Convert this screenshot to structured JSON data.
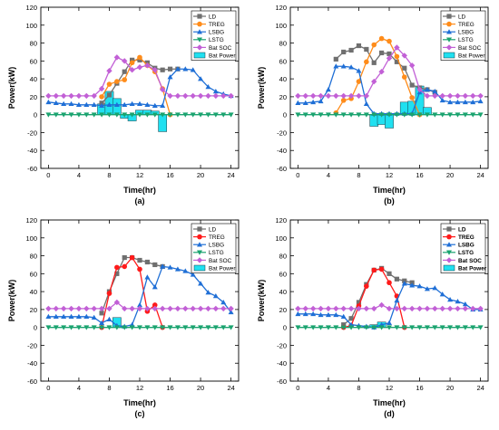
{
  "chart_data": [
    {
      "type": "line",
      "caption": "(a)",
      "xlabel": "Time(hr)",
      "ylabel": "Power(kW)",
      "xlim": [
        -1,
        25
      ],
      "ylim": [
        -60,
        120
      ],
      "xticks": [
        0,
        4,
        8,
        12,
        16,
        20,
        24
      ],
      "yticks": [
        -60,
        -40,
        -20,
        0,
        20,
        40,
        60,
        80,
        100,
        120
      ],
      "legend_position": "top-right",
      "legend_bold": false,
      "series": [
        {
          "name": "LD",
          "kind": "line",
          "color": "#6f6f6f",
          "marker": "square",
          "x": [
            7,
            8,
            9,
            10,
            11,
            12,
            13,
            14,
            15,
            16,
            17
          ],
          "y": [
            13,
            22,
            35,
            48,
            61,
            61,
            58,
            52,
            50,
            51,
            51
          ]
        },
        {
          "name": "TREG",
          "kind": "line",
          "color": "#ff8c1a",
          "marker": "circle",
          "x": [
            7,
            8,
            9,
            10,
            11,
            12,
            13,
            14,
            15,
            16
          ],
          "y": [
            20,
            34,
            37,
            39,
            58,
            64,
            55,
            48,
            29,
            0
          ]
        },
        {
          "name": "LSBG",
          "kind": "line",
          "color": "#1f6fd6",
          "marker": "triangle-up",
          "x": [
            0,
            1,
            2,
            3,
            4,
            5,
            6,
            7,
            8,
            9,
            10,
            11,
            12,
            13,
            14,
            15,
            16,
            17,
            18,
            19,
            20,
            21,
            22,
            23,
            24
          ],
          "y": [
            14,
            13,
            12,
            12,
            11,
            11,
            11,
            10,
            11,
            11,
            11,
            12,
            12,
            11,
            10,
            10,
            42,
            51,
            51,
            50,
            40,
            31,
            26,
            23,
            21
          ]
        },
        {
          "name": "LSTG",
          "kind": "line",
          "color": "#1aa36f",
          "marker": "triangle-down",
          "x": [
            0,
            1,
            2,
            3,
            4,
            5,
            6,
            7,
            8,
            9,
            10,
            11,
            12,
            13,
            14,
            15,
            16,
            17,
            18,
            19,
            20,
            21,
            22,
            23,
            24
          ],
          "y": [
            0,
            0,
            0,
            0,
            0,
            0,
            0,
            0,
            0,
            0,
            0,
            0,
            0,
            0,
            0,
            0,
            0,
            0,
            0,
            0,
            0,
            0,
            0,
            0,
            0
          ]
        },
        {
          "name": "Bat SOC",
          "kind": "line",
          "color": "#c260d6",
          "marker": "diamond",
          "x": [
            0,
            1,
            2,
            3,
            4,
            5,
            6,
            7,
            8,
            9,
            10,
            11,
            12,
            13,
            14,
            15,
            16,
            17,
            18,
            19,
            20,
            21,
            22,
            23,
            24
          ],
          "y": [
            21,
            21,
            21,
            21,
            21,
            21,
            21,
            29,
            49,
            64,
            60,
            50,
            53,
            55,
            50,
            28,
            21,
            21,
            21,
            21,
            21,
            21,
            21,
            21,
            21
          ]
        },
        {
          "name": "Bat Power",
          "kind": "bar",
          "color": "#20e0f0",
          "x": [
            7,
            8,
            9,
            10,
            11,
            12,
            13,
            14,
            15
          ],
          "y": [
            12,
            26,
            18,
            -4,
            -7,
            5,
            5,
            4,
            -19
          ]
        }
      ]
    },
    {
      "type": "line",
      "caption": "(b)",
      "xlabel": "Time(hr)",
      "ylabel": "Power(kW)",
      "xlim": [
        -1,
        25
      ],
      "ylim": [
        -60,
        120
      ],
      "xticks": [
        0,
        4,
        8,
        12,
        16,
        20,
        24
      ],
      "yticks": [
        -60,
        -40,
        -20,
        0,
        20,
        40,
        60,
        80,
        100,
        120
      ],
      "legend_position": "top-right",
      "legend_bold": false,
      "series": [
        {
          "name": "LD",
          "kind": "line",
          "color": "#6f6f6f",
          "marker": "square",
          "x": [
            5,
            6,
            7,
            8,
            9,
            10,
            11,
            12,
            13,
            14,
            15,
            16,
            17,
            18
          ],
          "y": [
            62,
            70,
            72,
            77,
            73,
            58,
            69,
            68,
            59,
            52,
            33,
            30,
            28,
            25
          ]
        },
        {
          "name": "TREG",
          "kind": "line",
          "color": "#ff8c1a",
          "marker": "circle",
          "x": [
            5,
            6,
            7,
            8,
            9,
            10,
            11,
            12,
            13,
            14,
            15,
            16
          ],
          "y": [
            2,
            16,
            18,
            37,
            59,
            78,
            85,
            82,
            65,
            42,
            19,
            0
          ]
        },
        {
          "name": "LSBG",
          "kind": "line",
          "color": "#1f6fd6",
          "marker": "triangle-up",
          "x": [
            0,
            1,
            2,
            3,
            4,
            5,
            6,
            7,
            8,
            9,
            10,
            11,
            12,
            13,
            14,
            15,
            16,
            17,
            18,
            19,
            20,
            21,
            22,
            23,
            24
          ],
          "y": [
            13,
            13,
            14,
            15,
            28,
            54,
            54,
            53,
            49,
            12,
            1,
            1,
            1,
            1,
            1,
            1,
            25,
            28,
            26,
            16,
            14,
            14,
            14,
            14,
            15
          ]
        },
        {
          "name": "LSTG",
          "kind": "line",
          "color": "#1aa36f",
          "marker": "triangle-down",
          "x": [
            0,
            1,
            2,
            3,
            4,
            5,
            6,
            7,
            8,
            9,
            10,
            11,
            12,
            13,
            14,
            15,
            16,
            17,
            18,
            19,
            20,
            21,
            22,
            23,
            24
          ],
          "y": [
            0,
            0,
            0,
            0,
            0,
            0,
            0,
            0,
            0,
            0,
            0,
            0,
            0,
            0,
            0,
            0,
            0,
            0,
            0,
            0,
            0,
            0,
            0,
            0,
            0
          ]
        },
        {
          "name": "Bat SOC",
          "kind": "line",
          "color": "#c260d6",
          "marker": "diamond",
          "x": [
            0,
            1,
            2,
            3,
            4,
            5,
            6,
            7,
            8,
            9,
            10,
            11,
            12,
            13,
            14,
            15,
            16,
            17,
            18,
            19,
            20,
            21,
            22,
            23,
            24
          ],
          "y": [
            21,
            21,
            21,
            21,
            21,
            21,
            21,
            21,
            21,
            21,
            37,
            48,
            63,
            75,
            66,
            55,
            28,
            21,
            21,
            21,
            21,
            21,
            21,
            21,
            21
          ]
        },
        {
          "name": "Bat Power",
          "kind": "bar",
          "color": "#20e0f0",
          "x": [
            10,
            11,
            12,
            14,
            15,
            16,
            17
          ],
          "y": [
            -13,
            -11,
            -15,
            14,
            15,
            32,
            8
          ]
        }
      ]
    },
    {
      "type": "line",
      "caption": "(c)",
      "xlabel": "Time(hr)",
      "ylabel": "Power(kW)",
      "xlim": [
        -1,
        25
      ],
      "ylim": [
        -60,
        120
      ],
      "xticks": [
        0,
        4,
        8,
        12,
        16,
        20,
        24
      ],
      "yticks": [
        -60,
        -40,
        -20,
        0,
        20,
        40,
        60,
        80,
        100,
        120
      ],
      "legend_position": "top-right",
      "legend_bold": false,
      "series": [
        {
          "name": "LD",
          "kind": "line",
          "color": "#6f6f6f",
          "marker": "square",
          "x": [
            7,
            8,
            9,
            10,
            11,
            12,
            13,
            14,
            15
          ],
          "y": [
            16,
            40,
            60,
            78,
            78,
            75,
            73,
            70,
            68
          ]
        },
        {
          "name": "TREG",
          "kind": "line",
          "color": "#ff1a1a",
          "marker": "circle",
          "x": [
            7,
            8,
            9,
            10,
            11,
            12,
            13,
            14,
            15
          ],
          "y": [
            0,
            38,
            67,
            68,
            78,
            65,
            18,
            25,
            0
          ]
        },
        {
          "name": "LSBG",
          "kind": "line",
          "color": "#1f6fd6",
          "marker": "triangle-up",
          "x": [
            0,
            1,
            2,
            3,
            4,
            5,
            6,
            7,
            8,
            9,
            10,
            11,
            12,
            13,
            14,
            15,
            16,
            17,
            18,
            19,
            20,
            21,
            22,
            23,
            24
          ],
          "y": [
            12,
            12,
            12,
            12,
            12,
            12,
            11,
            5,
            9,
            2,
            1,
            3,
            25,
            56,
            45,
            68,
            67,
            65,
            63,
            59,
            49,
            39,
            35,
            28,
            17
          ]
        },
        {
          "name": "LSTG",
          "kind": "line",
          "color": "#1aa36f",
          "marker": "triangle-down",
          "x": [
            0,
            1,
            2,
            3,
            4,
            5,
            6,
            7,
            8,
            9,
            10,
            11,
            12,
            13,
            14,
            15,
            16,
            17,
            18,
            19,
            20,
            21,
            22,
            23,
            24
          ],
          "y": [
            0,
            0,
            0,
            0,
            0,
            0,
            0,
            0,
            0,
            0,
            0,
            0,
            0,
            0,
            0,
            0,
            0,
            0,
            0,
            0,
            0,
            0,
            0,
            0,
            0
          ]
        },
        {
          "name": "Bat SOC",
          "kind": "line",
          "color": "#c260d6",
          "marker": "diamond",
          "x": [
            0,
            1,
            2,
            3,
            4,
            5,
            6,
            7,
            8,
            9,
            10,
            11,
            12,
            13,
            14,
            15,
            16,
            17,
            18,
            19,
            20,
            21,
            22,
            23,
            24
          ],
          "y": [
            21,
            21,
            21,
            21,
            21,
            21,
            21,
            21,
            21,
            28,
            21,
            21,
            21,
            21,
            21,
            21,
            21,
            21,
            21,
            21,
            21,
            21,
            21,
            21,
            21
          ]
        },
        {
          "name": "Bat Power",
          "kind": "bar",
          "color": "#20e0f0",
          "x": [
            9
          ],
          "y": [
            11
          ]
        }
      ]
    },
    {
      "type": "line",
      "caption": "(d)",
      "xlabel": "Time(hr)",
      "ylabel": "Power(kW)",
      "xlim": [
        -1,
        25
      ],
      "ylim": [
        -60,
        120
      ],
      "xticks": [
        0,
        4,
        8,
        12,
        16,
        20,
        24
      ],
      "yticks": [
        -60,
        -40,
        -20,
        0,
        20,
        40,
        60,
        80,
        100,
        120
      ],
      "legend_position": "top-right",
      "legend_bold": true,
      "series": [
        {
          "name": "LD",
          "kind": "line",
          "color": "#6f6f6f",
          "marker": "square",
          "x": [
            6,
            7,
            8,
            9,
            10,
            11,
            12,
            13,
            14,
            15
          ],
          "y": [
            3,
            10,
            28,
            48,
            64,
            66,
            60,
            54,
            52,
            50
          ]
        },
        {
          "name": "TREG",
          "kind": "line",
          "color": "#ff1a1a",
          "marker": "circle",
          "x": [
            6,
            7,
            8,
            9,
            10,
            11,
            12,
            13,
            14
          ],
          "y": [
            0,
            2,
            24,
            46,
            64,
            65,
            50,
            35,
            0
          ]
        },
        {
          "name": "LSBG",
          "kind": "line",
          "color": "#1f6fd6",
          "marker": "triangle-up",
          "x": [
            0,
            1,
            2,
            3,
            4,
            5,
            6,
            7,
            8,
            9,
            10,
            11,
            12,
            13,
            14,
            15,
            16,
            17,
            18,
            19,
            20,
            21,
            22,
            23,
            24
          ],
          "y": [
            15,
            15,
            15,
            14,
            14,
            14,
            12,
            3,
            2,
            1,
            0,
            3,
            5,
            30,
            49,
            47,
            46,
            43,
            44,
            37,
            31,
            29,
            26,
            20,
            20
          ]
        },
        {
          "name": "LSTG",
          "kind": "line",
          "color": "#1aa36f",
          "marker": "triangle-down",
          "x": [
            0,
            1,
            2,
            3,
            4,
            5,
            6,
            7,
            8,
            9,
            10,
            11,
            12,
            13,
            14,
            15,
            16,
            17,
            18,
            19,
            20,
            21,
            22,
            23,
            24
          ],
          "y": [
            0,
            0,
            0,
            0,
            0,
            0,
            0,
            0,
            0,
            0,
            0,
            0,
            0,
            0,
            0,
            0,
            0,
            0,
            0,
            0,
            0,
            0,
            0,
            0,
            0
          ]
        },
        {
          "name": "Bat SOC",
          "kind": "line",
          "color": "#c260d6",
          "marker": "diamond",
          "x": [
            0,
            1,
            2,
            3,
            4,
            5,
            6,
            7,
            8,
            9,
            10,
            11,
            12,
            13,
            14,
            15,
            16,
            17,
            18,
            19,
            20,
            21,
            22,
            23,
            24
          ],
          "y": [
            21,
            21,
            21,
            21,
            21,
            21,
            21,
            21,
            21,
            21,
            21,
            25,
            21,
            21,
            21,
            21,
            21,
            21,
            21,
            21,
            21,
            21,
            21,
            21,
            21
          ]
        },
        {
          "name": "Bat Power",
          "kind": "bar",
          "color": "#20e0f0",
          "x": [
            10,
            11
          ],
          "y": [
            3,
            6
          ]
        }
      ]
    }
  ]
}
